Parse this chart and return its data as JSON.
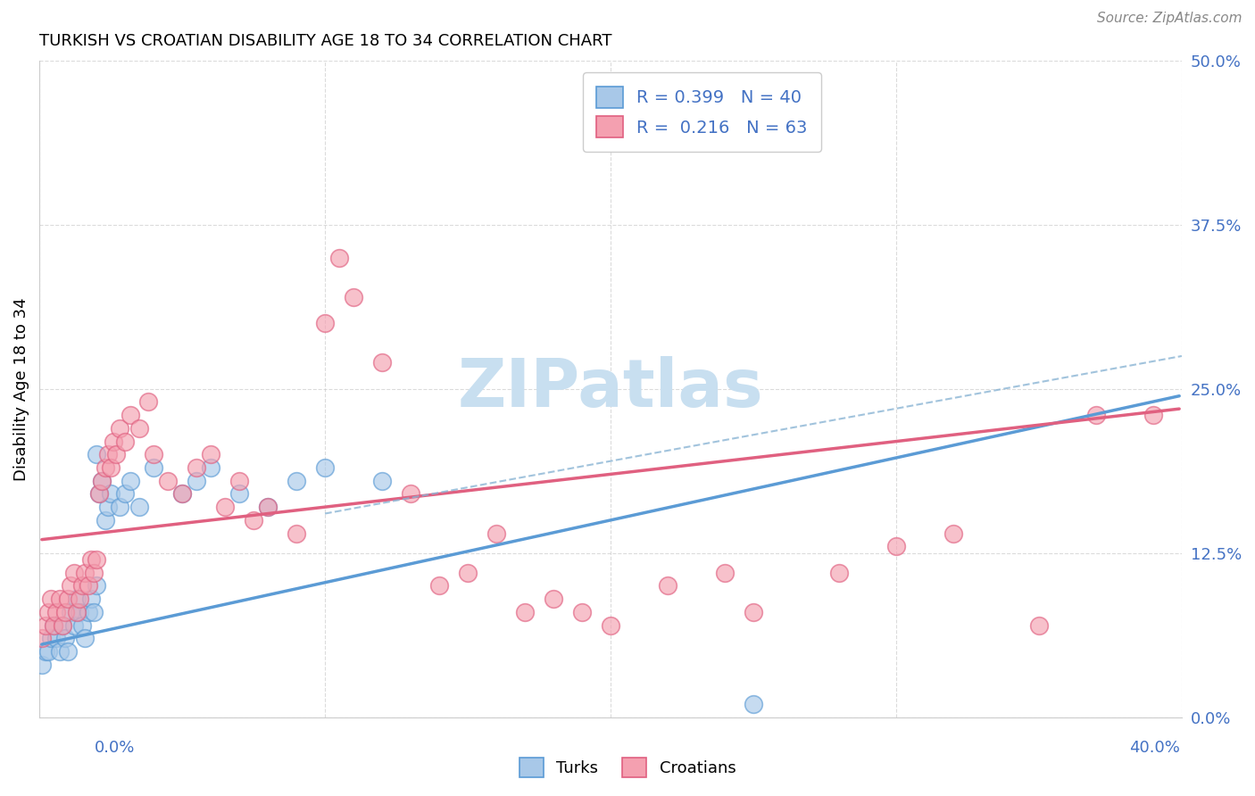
{
  "title": "TURKISH VS CROATIAN DISABILITY AGE 18 TO 34 CORRELATION CHART",
  "source": "Source: ZipAtlas.com",
  "ylabel": "Disability Age 18 to 34",
  "ytick_values": [
    0.0,
    0.125,
    0.25,
    0.375,
    0.5
  ],
  "xlim": [
    0.0,
    0.4
  ],
  "ylim": [
    0.0,
    0.5
  ],
  "turks_color": "#a8c8e8",
  "turks_edge_color": "#5b9bd5",
  "croatians_color": "#f4a0b0",
  "croatians_edge_color": "#e06080",
  "watermark_color": "#c8dff0",
  "turks_line_color": "#5b9bd5",
  "croatians_line_color": "#e06080",
  "dashed_line_color": "#8ab4d4",
  "legend_label_turks": "R = 0.399   N = 40",
  "legend_label_croatians": "R =  0.216   N = 63",
  "turks_x": [
    0.001,
    0.002,
    0.003,
    0.004,
    0.005,
    0.006,
    0.007,
    0.008,
    0.009,
    0.01,
    0.011,
    0.012,
    0.013,
    0.014,
    0.015,
    0.016,
    0.017,
    0.018,
    0.019,
    0.02,
    0.021,
    0.022,
    0.023,
    0.024,
    0.025,
    0.028,
    0.03,
    0.032,
    0.035,
    0.04,
    0.05,
    0.055,
    0.06,
    0.07,
    0.08,
    0.09,
    0.1,
    0.12,
    0.02,
    0.25
  ],
  "turks_y": [
    0.04,
    0.05,
    0.05,
    0.06,
    0.07,
    0.06,
    0.05,
    0.07,
    0.06,
    0.05,
    0.08,
    0.07,
    0.09,
    0.08,
    0.07,
    0.06,
    0.08,
    0.09,
    0.08,
    0.1,
    0.17,
    0.18,
    0.15,
    0.16,
    0.17,
    0.16,
    0.17,
    0.18,
    0.16,
    0.19,
    0.17,
    0.18,
    0.19,
    0.17,
    0.16,
    0.18,
    0.19,
    0.18,
    0.2,
    0.01
  ],
  "croatians_x": [
    0.001,
    0.002,
    0.003,
    0.004,
    0.005,
    0.006,
    0.007,
    0.008,
    0.009,
    0.01,
    0.011,
    0.012,
    0.013,
    0.014,
    0.015,
    0.016,
    0.017,
    0.018,
    0.019,
    0.02,
    0.021,
    0.022,
    0.023,
    0.024,
    0.025,
    0.026,
    0.027,
    0.028,
    0.03,
    0.032,
    0.035,
    0.038,
    0.04,
    0.045,
    0.05,
    0.055,
    0.06,
    0.065,
    0.07,
    0.075,
    0.08,
    0.09,
    0.1,
    0.105,
    0.11,
    0.12,
    0.13,
    0.14,
    0.15,
    0.16,
    0.17,
    0.18,
    0.19,
    0.2,
    0.22,
    0.24,
    0.25,
    0.28,
    0.3,
    0.32,
    0.35,
    0.37,
    0.39
  ],
  "croatians_y": [
    0.06,
    0.07,
    0.08,
    0.09,
    0.07,
    0.08,
    0.09,
    0.07,
    0.08,
    0.09,
    0.1,
    0.11,
    0.08,
    0.09,
    0.1,
    0.11,
    0.1,
    0.12,
    0.11,
    0.12,
    0.17,
    0.18,
    0.19,
    0.2,
    0.19,
    0.21,
    0.2,
    0.22,
    0.21,
    0.23,
    0.22,
    0.24,
    0.2,
    0.18,
    0.17,
    0.19,
    0.2,
    0.16,
    0.18,
    0.15,
    0.16,
    0.14,
    0.3,
    0.35,
    0.32,
    0.27,
    0.17,
    0.1,
    0.11,
    0.14,
    0.08,
    0.09,
    0.08,
    0.07,
    0.1,
    0.11,
    0.08,
    0.11,
    0.13,
    0.14,
    0.07,
    0.23,
    0.23
  ],
  "turks_line_x0": 0.0,
  "turks_line_y0": 0.055,
  "turks_line_x1": 0.4,
  "turks_line_y1": 0.245,
  "croatians_line_x0": 0.0,
  "croatians_line_y0": 0.135,
  "croatians_line_x1": 0.4,
  "croatians_line_y1": 0.235,
  "dashed_line_x0": 0.1,
  "dashed_line_y0": 0.155,
  "dashed_line_x1": 0.4,
  "dashed_line_y1": 0.275
}
